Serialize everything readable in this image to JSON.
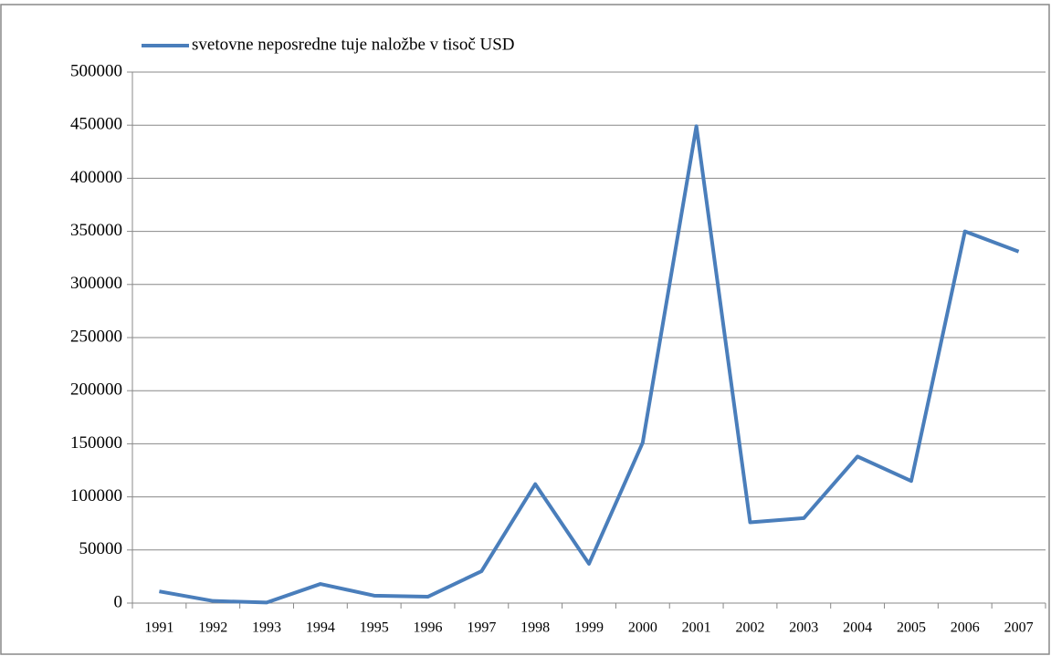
{
  "chart_data": {
    "type": "line",
    "categories": [
      "1991",
      "1992",
      "1993",
      "1994",
      "1995",
      "1996",
      "1997",
      "1998",
      "1999",
      "2000",
      "2001",
      "2002",
      "2003",
      "2004",
      "2005",
      "2006",
      "2007"
    ],
    "series": [
      {
        "name": "svetovne neposredne tuje naložbe v tisoč USD",
        "color": "#4a7ebb",
        "values": [
          11000,
          2000,
          500,
          18000,
          7000,
          6000,
          30000,
          112000,
          37000,
          151000,
          449000,
          76000,
          80000,
          138000,
          115000,
          350000,
          331000
        ]
      }
    ],
    "ylim": [
      0,
      500000
    ],
    "yticks": [
      0,
      50000,
      100000,
      150000,
      200000,
      250000,
      300000,
      350000,
      400000,
      450000,
      500000
    ],
    "grid": true,
    "legend": "top"
  }
}
